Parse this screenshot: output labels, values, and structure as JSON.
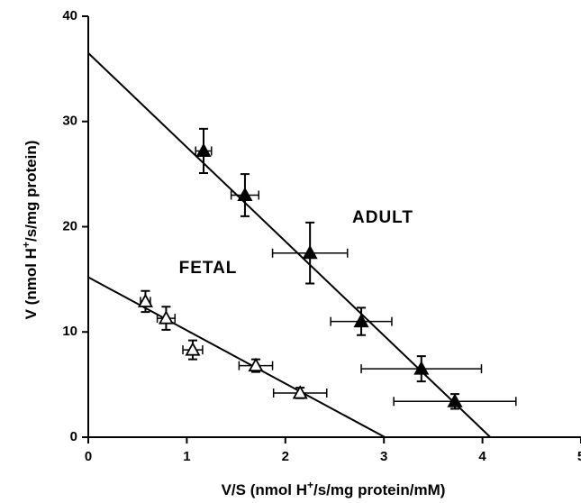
{
  "chart_data": {
    "type": "scatter",
    "x_label": [
      "V/S  (nmol  H",
      "+",
      "/s/mg  protein/mM)"
    ],
    "y_label": [
      "V  (nmol  H",
      "+",
      "/s/mg  protein)"
    ],
    "xlim": [
      0,
      5
    ],
    "ylim": [
      0,
      40
    ],
    "xticks": [
      0,
      1,
      2,
      3,
      4,
      5
    ],
    "yticks": [
      0,
      10,
      20,
      30,
      40
    ],
    "series": [
      {
        "name": "ADULT",
        "color": "#000000",
        "marker": "filled-triangle",
        "x": [
          1.17,
          1.59,
          2.25,
          2.77,
          3.38,
          3.72
        ],
        "values": [
          27.2,
          23.0,
          17.5,
          11.0,
          6.5,
          3.4
        ],
        "xerr": [
          0.08,
          0.14,
          0.38,
          0.31,
          0.61,
          0.62
        ],
        "yerr": [
          2.1,
          2.0,
          2.9,
          1.3,
          1.2,
          0.7
        ],
        "fit": {
          "x": [
            0.0,
            4.08
          ],
          "y": [
            36.5,
            0
          ]
        }
      },
      {
        "name": "FETAL",
        "color": "#000000",
        "marker": "open-triangle",
        "x": [
          0.58,
          0.79,
          1.06,
          1.7,
          2.15
        ],
        "values": [
          12.9,
          11.3,
          8.3,
          6.8,
          4.2
        ],
        "xerr": [
          0.05,
          0.09,
          0.1,
          0.17,
          0.27
        ],
        "yerr": [
          1.0,
          1.1,
          0.9,
          0.6,
          0.5
        ],
        "fit": {
          "x": [
            0.0,
            3.01
          ],
          "y": [
            15.2,
            0
          ]
        }
      }
    ]
  }
}
